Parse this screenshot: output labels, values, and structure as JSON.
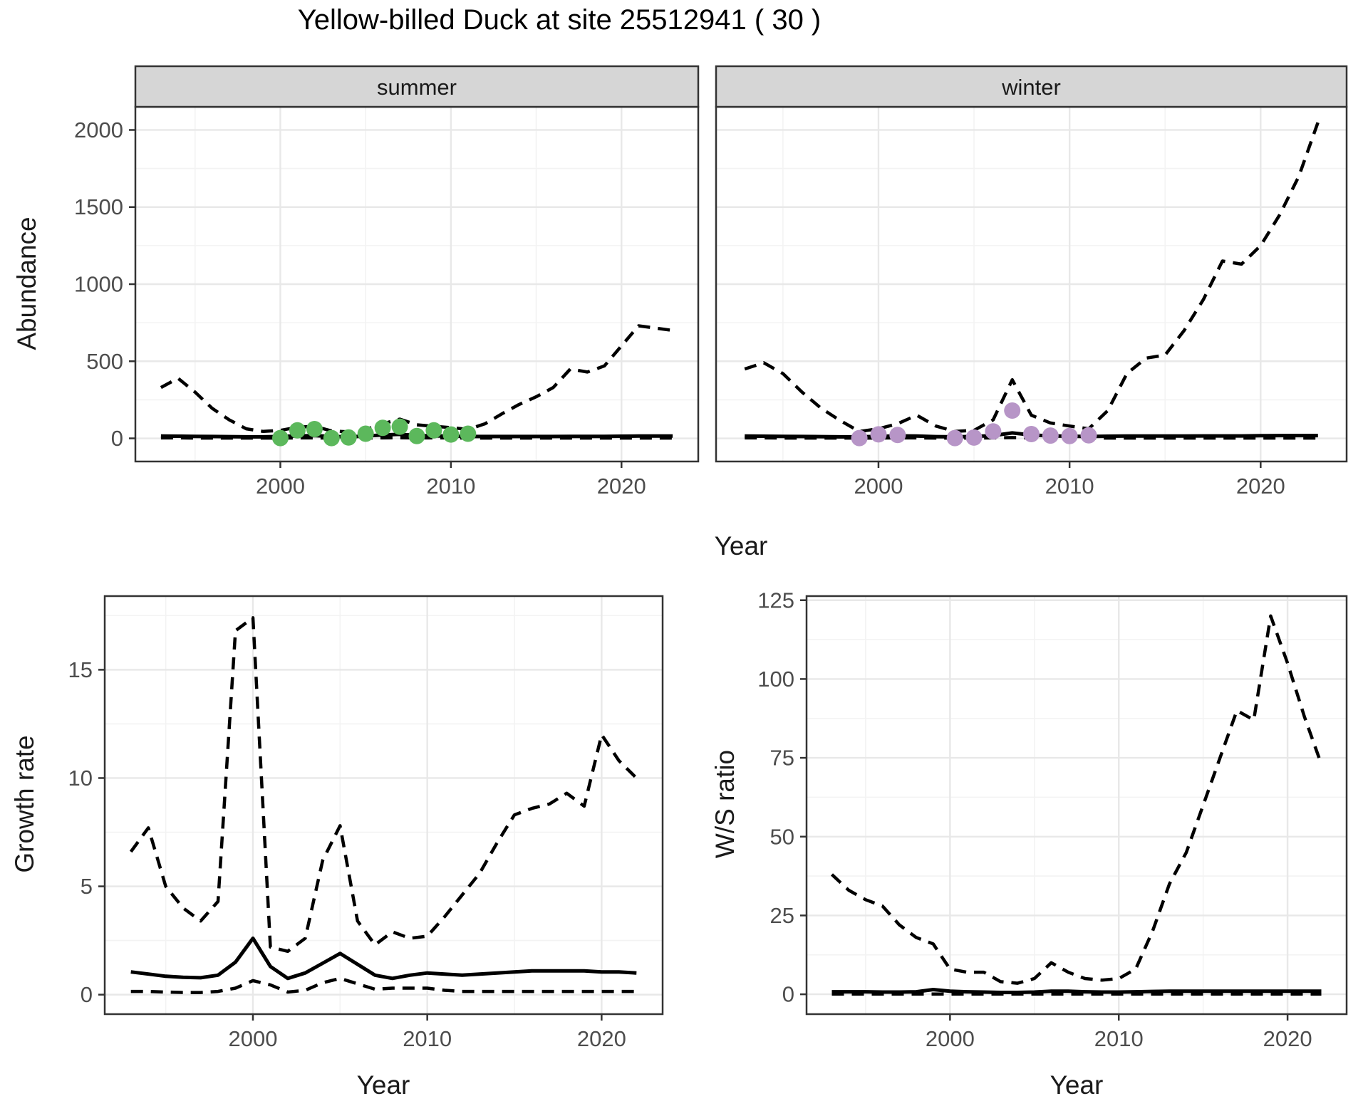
{
  "title": "Yellow-billed Duck at site 25512941 ( 30 )",
  "axis": {
    "x_label": "Year",
    "abundance_label": "Abundance",
    "growth_label": "Growth rate",
    "ws_label": "W/S ratio"
  },
  "style": {
    "line_color": "#000000",
    "panel_border": "#333333",
    "strip_bg": "#d6d6d6",
    "grid_major": "#e8e8e8",
    "grid_minor": "#f3f3f3",
    "tick_mark_color": "#333333",
    "tick_label_color": "#4d4d4d",
    "text_color": "#1a1a1a",
    "summer_point_color": "#5cb85c",
    "winter_point_color": "#b795c7"
  },
  "chart_data": [
    {
      "id": "abundance-summer",
      "type": "line",
      "facet_label": "summer",
      "xlabel": "Year",
      "ylabel": "Abundance",
      "xlim": [
        1991.5,
        2024.5
      ],
      "ylim": [
        -150,
        2150
      ],
      "xticks": [
        2000,
        2010,
        2020
      ],
      "xticks_minor": [
        1995,
        2005,
        2015
      ],
      "yticks": [
        0,
        500,
        1000,
        1500,
        2000
      ],
      "yticks_minor": [
        250,
        750,
        1250,
        1750
      ],
      "grid": true,
      "legend": "none",
      "x": [
        1993,
        1994,
        1995,
        1996,
        1997,
        1998,
        1999,
        2000,
        2001,
        2002,
        2003,
        2004,
        2005,
        2006,
        2007,
        2008,
        2009,
        2010,
        2011,
        2012,
        2013,
        2014,
        2015,
        2016,
        2017,
        2018,
        2019,
        2020,
        2021,
        2022,
        2023
      ],
      "series": [
        {
          "name": "upper_ci",
          "linetype": "dashed",
          "values": [
            330,
            390,
            300,
            195,
            120,
            62,
            45,
            52,
            72,
            78,
            48,
            42,
            58,
            95,
            125,
            88,
            78,
            70,
            58,
            95,
            160,
            220,
            270,
            330,
            450,
            430,
            470,
            600,
            730,
            715,
            700
          ]
        },
        {
          "name": "estimate",
          "linetype": "solid",
          "values": [
            15,
            14,
            13,
            12,
            11,
            10,
            10,
            12,
            16,
            18,
            12,
            10,
            15,
            22,
            26,
            19,
            16,
            15,
            12,
            12,
            12,
            12,
            12,
            12,
            13,
            13,
            13,
            14,
            15,
            15,
            15
          ]
        },
        {
          "name": "lower_ci",
          "linetype": "dashed",
          "values": [
            3,
            3,
            2,
            2,
            2,
            2,
            2,
            2,
            3,
            3,
            2,
            2,
            2,
            3,
            4,
            3,
            3,
            3,
            2,
            2,
            2,
            2,
            2,
            2,
            2,
            2,
            2,
            2,
            2,
            2,
            2
          ]
        }
      ],
      "points": {
        "name": "observed_counts",
        "color": "#5cb85c",
        "x": [
          2000,
          2001,
          2002,
          2003,
          2004,
          2005,
          2006,
          2007,
          2008,
          2009,
          2010,
          2011
        ],
        "y": [
          2,
          52,
          60,
          2,
          6,
          30,
          68,
          76,
          15,
          52,
          25,
          30
        ]
      }
    },
    {
      "id": "abundance-winter",
      "type": "line",
      "facet_label": "winter",
      "xlabel": "Year",
      "ylabel": "Abundance",
      "xlim": [
        1991.5,
        2024.5
      ],
      "ylim": [
        -150,
        2150
      ],
      "xticks": [
        2000,
        2010,
        2020
      ],
      "xticks_minor": [
        1995,
        2005,
        2015
      ],
      "yticks": [
        0,
        500,
        1000,
        1500,
        2000
      ],
      "yticks_minor": [
        250,
        750,
        1250,
        1750
      ],
      "grid": true,
      "legend": "none",
      "x": [
        1993,
        1994,
        1995,
        1996,
        1997,
        1998,
        1999,
        2000,
        2001,
        2002,
        2003,
        2004,
        2005,
        2006,
        2007,
        2008,
        2009,
        2010,
        2011,
        2012,
        2013,
        2014,
        2015,
        2016,
        2017,
        2018,
        2019,
        2020,
        2021,
        2022,
        2023
      ],
      "series": [
        {
          "name": "upper_ci",
          "linetype": "dashed",
          "values": [
            450,
            490,
            420,
            300,
            195,
            115,
            45,
            62,
            95,
            150,
            80,
            45,
            52,
            120,
            380,
            150,
            100,
            80,
            62,
            180,
            420,
            520,
            540,
            700,
            900,
            1150,
            1130,
            1250,
            1450,
            1700,
            2050
          ]
        },
        {
          "name": "estimate",
          "linetype": "solid",
          "values": [
            15,
            14,
            13,
            12,
            11,
            10,
            10,
            13,
            16,
            15,
            11,
            10,
            12,
            18,
            35,
            22,
            16,
            14,
            12,
            14,
            15,
            15,
            15,
            15,
            16,
            16,
            16,
            17,
            18,
            18,
            18
          ]
        },
        {
          "name": "lower_ci",
          "linetype": "dashed",
          "values": [
            3,
            3,
            2,
            2,
            2,
            2,
            2,
            2,
            3,
            3,
            2,
            2,
            2,
            3,
            5,
            3,
            3,
            3,
            2,
            2,
            2,
            2,
            2,
            2,
            2,
            2,
            2,
            2,
            2,
            2,
            2
          ]
        }
      ],
      "points": {
        "name": "observed_counts",
        "color": "#b795c7",
        "x": [
          1999,
          2000,
          2001,
          2004,
          2005,
          2006,
          2007,
          2008,
          2009,
          2010,
          2011
        ],
        "y": [
          2,
          26,
          22,
          2,
          5,
          45,
          180,
          28,
          18,
          15,
          20
        ]
      }
    },
    {
      "id": "growth-rate",
      "type": "line",
      "facet_label": null,
      "xlabel": "Year",
      "ylabel": "Growth rate",
      "xlim": [
        1991.5,
        2023.5
      ],
      "ylim": [
        -0.9,
        18.4
      ],
      "xticks": [
        2000,
        2010,
        2020
      ],
      "xticks_minor": [
        1995,
        2005,
        2015
      ],
      "yticks": [
        0,
        5,
        10,
        15
      ],
      "yticks_minor": [
        2.5,
        7.5,
        12.5,
        17.5
      ],
      "grid": true,
      "legend": "none",
      "x": [
        1993,
        1994,
        1995,
        1996,
        1997,
        1998,
        1999,
        2000,
        2001,
        2002,
        2003,
        2004,
        2005,
        2006,
        2007,
        2008,
        2009,
        2010,
        2011,
        2012,
        2013,
        2014,
        2015,
        2016,
        2017,
        2018,
        2019,
        2020,
        2021,
        2022
      ],
      "series": [
        {
          "name": "upper_ci",
          "linetype": "dashed",
          "values": [
            6.6,
            7.7,
            5.0,
            4.0,
            3.4,
            4.3,
            16.8,
            17.4,
            2.2,
            2.0,
            2.6,
            6.2,
            7.8,
            3.4,
            2.3,
            2.9,
            2.6,
            2.7,
            3.6,
            4.6,
            5.6,
            7.0,
            8.3,
            8.6,
            8.8,
            9.3,
            8.7,
            12.0,
            10.8,
            10.0
          ]
        },
        {
          "name": "estimate",
          "linetype": "solid",
          "values": [
            1.05,
            0.95,
            0.85,
            0.8,
            0.78,
            0.9,
            1.5,
            2.6,
            1.3,
            0.75,
            1.0,
            1.45,
            1.9,
            1.4,
            0.9,
            0.75,
            0.9,
            1.0,
            0.95,
            0.9,
            0.95,
            1.0,
            1.05,
            1.1,
            1.1,
            1.1,
            1.1,
            1.05,
            1.05,
            1.0
          ]
        },
        {
          "name": "lower_ci",
          "linetype": "dashed",
          "values": [
            0.15,
            0.15,
            0.12,
            0.1,
            0.1,
            0.15,
            0.3,
            0.65,
            0.45,
            0.12,
            0.2,
            0.55,
            0.75,
            0.5,
            0.25,
            0.3,
            0.3,
            0.3,
            0.2,
            0.15,
            0.15,
            0.15,
            0.15,
            0.15,
            0.15,
            0.15,
            0.15,
            0.15,
            0.15,
            0.15
          ]
        }
      ],
      "points": null
    },
    {
      "id": "ws-ratio",
      "type": "line",
      "facet_label": null,
      "xlabel": "Year",
      "ylabel": "W/S ratio",
      "xlim": [
        1991.5,
        2023.5
      ],
      "ylim": [
        -6.3,
        126.3
      ],
      "xticks": [
        2000,
        2010,
        2020
      ],
      "xticks_minor": [
        1995,
        2005,
        2015
      ],
      "yticks": [
        0,
        25,
        50,
        75,
        100,
        125
      ],
      "yticks_minor": [
        12.5,
        37.5,
        62.5,
        87.5,
        112.5
      ],
      "grid": true,
      "legend": "none",
      "x": [
        1993,
        1994,
        1995,
        1996,
        1997,
        1998,
        1999,
        2000,
        2001,
        2002,
        2003,
        2004,
        2005,
        2006,
        2007,
        2008,
        2009,
        2010,
        2011,
        2012,
        2013,
        2014,
        2015,
        2016,
        2017,
        2018,
        2019,
        2020,
        2021,
        2022
      ],
      "series": [
        {
          "name": "upper_ci",
          "linetype": "dashed",
          "values": [
            38,
            33,
            30,
            28,
            22,
            18,
            16,
            8,
            7,
            7,
            4,
            3.5,
            5,
            10,
            7,
            5,
            4.5,
            5,
            8,
            20,
            35,
            45,
            60,
            75,
            90,
            87,
            120,
            105,
            88,
            73
          ]
        },
        {
          "name": "estimate",
          "linetype": "solid",
          "values": [
            0.8,
            0.8,
            0.8,
            0.7,
            0.7,
            0.8,
            1.5,
            1.0,
            0.8,
            0.7,
            0.6,
            0.6,
            0.7,
            1.0,
            1.0,
            0.8,
            0.7,
            0.7,
            0.8,
            0.9,
            1.0,
            1.0,
            1.0,
            1.0,
            1.0,
            1.0,
            1.0,
            1.0,
            1.0,
            1.0
          ]
        },
        {
          "name": "lower_ci",
          "linetype": "dashed",
          "values": [
            0.1,
            0.1,
            0.1,
            0.1,
            0.1,
            0.1,
            0.1,
            0.1,
            0.1,
            0.1,
            0.1,
            0.1,
            0.1,
            0.1,
            0.1,
            0.1,
            0.1,
            0.1,
            0.1,
            0.1,
            0.1,
            0.1,
            0.1,
            0.1,
            0.1,
            0.1,
            0.1,
            0.1,
            0.1,
            0.1
          ]
        }
      ],
      "points": null
    }
  ]
}
